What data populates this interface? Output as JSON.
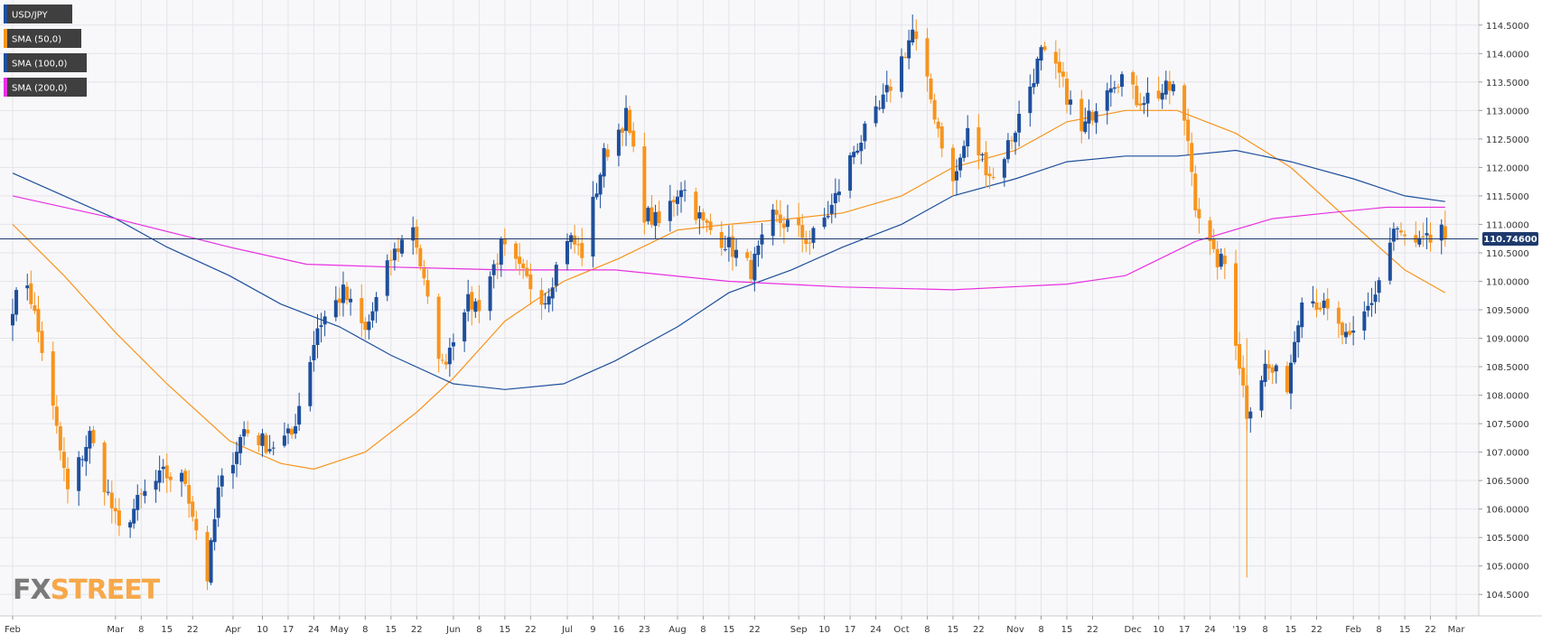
{
  "chart_data": {
    "type": "candlestick",
    "symbol": "USD/JPY",
    "last_price_label": "110.74600",
    "last_price": 110.746,
    "ylim": [
      104.25,
      114.75
    ],
    "yticks": [
      "104.5000",
      "105.0000",
      "105.5000",
      "106.0000",
      "106.5000",
      "107.0000",
      "107.5000",
      "108.0000",
      "108.5000",
      "109.0000",
      "109.5000",
      "110.0000",
      "110.5000",
      "111.0000",
      "111.5000",
      "112.0000",
      "112.5000",
      "113.0000",
      "113.5000",
      "114.0000",
      "114.5000"
    ],
    "xticks": [
      {
        "label": "Feb",
        "date": "2018-02-01"
      },
      {
        "label": "Mar",
        "date": "2018-03-01"
      },
      {
        "label": "8",
        "date": "2018-03-08"
      },
      {
        "label": "15",
        "date": "2018-03-15"
      },
      {
        "label": "22",
        "date": "2018-03-22"
      },
      {
        "label": "Apr",
        "date": "2018-04-02"
      },
      {
        "label": "10",
        "date": "2018-04-10"
      },
      {
        "label": "17",
        "date": "2018-04-17"
      },
      {
        "label": "24",
        "date": "2018-04-24"
      },
      {
        "label": "May",
        "date": "2018-05-01"
      },
      {
        "label": "8",
        "date": "2018-05-08"
      },
      {
        "label": "15",
        "date": "2018-05-15"
      },
      {
        "label": "22",
        "date": "2018-05-22"
      },
      {
        "label": "Jun",
        "date": "2018-06-01"
      },
      {
        "label": "8",
        "date": "2018-06-08"
      },
      {
        "label": "15",
        "date": "2018-06-15"
      },
      {
        "label": "22",
        "date": "2018-06-22"
      },
      {
        "label": "Jul",
        "date": "2018-07-02"
      },
      {
        "label": "9",
        "date": "2018-07-09"
      },
      {
        "label": "16",
        "date": "2018-07-16"
      },
      {
        "label": "23",
        "date": "2018-07-23"
      },
      {
        "label": "Aug",
        "date": "2018-08-01"
      },
      {
        "label": "8",
        "date": "2018-08-08"
      },
      {
        "label": "15",
        "date": "2018-08-15"
      },
      {
        "label": "22",
        "date": "2018-08-22"
      },
      {
        "label": "Sep",
        "date": "2018-09-03"
      },
      {
        "label": "10",
        "date": "2018-09-10"
      },
      {
        "label": "17",
        "date": "2018-09-17"
      },
      {
        "label": "24",
        "date": "2018-09-24"
      },
      {
        "label": "Oct",
        "date": "2018-10-01"
      },
      {
        "label": "8",
        "date": "2018-10-08"
      },
      {
        "label": "15",
        "date": "2018-10-15"
      },
      {
        "label": "22",
        "date": "2018-10-22"
      },
      {
        "label": "Nov",
        "date": "2018-11-01"
      },
      {
        "label": "8",
        "date": "2018-11-08"
      },
      {
        "label": "15",
        "date": "2018-11-15"
      },
      {
        "label": "22",
        "date": "2018-11-22"
      },
      {
        "label": "Dec",
        "date": "2018-12-03"
      },
      {
        "label": "10",
        "date": "2018-12-10"
      },
      {
        "label": "17",
        "date": "2018-12-17"
      },
      {
        "label": "24",
        "date": "2018-12-24"
      },
      {
        "label": "'19",
        "date": "2019-01-01"
      },
      {
        "label": "8",
        "date": "2019-01-08"
      },
      {
        "label": "15",
        "date": "2019-01-15"
      },
      {
        "label": "22",
        "date": "2019-01-22"
      },
      {
        "label": "Feb",
        "date": "2019-02-01"
      },
      {
        "label": "8",
        "date": "2019-02-08"
      },
      {
        "label": "15",
        "date": "2019-02-15"
      },
      {
        "label": "22",
        "date": "2019-02-22"
      },
      {
        "label": "Mar",
        "date": "2019-03-01"
      }
    ],
    "x_range": [
      "2018-02-01",
      "2019-03-01"
    ],
    "candle_closes": {
      "start_date": "2018-02-01",
      "end_date": "2019-02-26",
      "anchors": [
        {
          "date": "2018-02-01",
          "price": 109.6
        },
        {
          "date": "2018-02-05",
          "price": 110.0
        },
        {
          "date": "2018-02-09",
          "price": 108.8
        },
        {
          "date": "2018-02-16",
          "price": 106.3
        },
        {
          "date": "2018-02-22",
          "price": 107.3
        },
        {
          "date": "2018-03-02",
          "price": 105.6
        },
        {
          "date": "2018-03-08",
          "price": 106.2
        },
        {
          "date": "2018-03-14",
          "price": 106.6
        },
        {
          "date": "2018-03-20",
          "price": 106.5
        },
        {
          "date": "2018-03-26",
          "price": 104.8
        },
        {
          "date": "2018-03-29",
          "price": 106.3
        },
        {
          "date": "2018-04-05",
          "price": 107.4
        },
        {
          "date": "2018-04-12",
          "price": 107.1
        },
        {
          "date": "2018-04-18",
          "price": 107.3
        },
        {
          "date": "2018-04-25",
          "price": 109.2
        },
        {
          "date": "2018-05-02",
          "price": 109.8
        },
        {
          "date": "2018-05-08",
          "price": 109.1
        },
        {
          "date": "2018-05-15",
          "price": 110.4
        },
        {
          "date": "2018-05-21",
          "price": 111.0
        },
        {
          "date": "2018-05-25",
          "price": 109.6
        },
        {
          "date": "2018-05-29",
          "price": 108.5
        },
        {
          "date": "2018-06-04",
          "price": 109.6
        },
        {
          "date": "2018-06-08",
          "price": 109.6
        },
        {
          "date": "2018-06-14",
          "price": 110.6
        },
        {
          "date": "2018-06-21",
          "price": 110.0
        },
        {
          "date": "2018-06-26",
          "price": 109.7
        },
        {
          "date": "2018-07-02",
          "price": 110.8
        },
        {
          "date": "2018-07-06",
          "price": 110.5
        },
        {
          "date": "2018-07-12",
          "price": 112.2
        },
        {
          "date": "2018-07-18",
          "price": 112.9
        },
        {
          "date": "2018-07-23",
          "price": 111.2
        },
        {
          "date": "2018-07-27",
          "price": 111.0
        },
        {
          "date": "2018-08-02",
          "price": 111.7
        },
        {
          "date": "2018-08-08",
          "price": 111.0
        },
        {
          "date": "2018-08-14",
          "price": 110.7
        },
        {
          "date": "2018-08-21",
          "price": 110.2
        },
        {
          "date": "2018-08-27",
          "price": 111.1
        },
        {
          "date": "2018-08-31",
          "price": 111.0
        },
        {
          "date": "2018-09-06",
          "price": 110.7
        },
        {
          "date": "2018-09-12",
          "price": 111.3
        },
        {
          "date": "2018-09-18",
          "price": 112.3
        },
        {
          "date": "2018-09-25",
          "price": 113.0
        },
        {
          "date": "2018-10-01",
          "price": 113.9
        },
        {
          "date": "2018-10-04",
          "price": 114.4
        },
        {
          "date": "2018-10-09",
          "price": 113.2
        },
        {
          "date": "2018-10-15",
          "price": 111.7
        },
        {
          "date": "2018-10-19",
          "price": 112.6
        },
        {
          "date": "2018-10-26",
          "price": 111.8
        },
        {
          "date": "2018-11-01",
          "price": 112.7
        },
        {
          "date": "2018-11-08",
          "price": 114.0
        },
        {
          "date": "2018-11-13",
          "price": 113.6
        },
        {
          "date": "2018-11-19",
          "price": 112.6
        },
        {
          "date": "2018-11-26",
          "price": 113.5
        },
        {
          "date": "2018-11-30",
          "price": 113.6
        },
        {
          "date": "2018-12-04",
          "price": 113.2
        },
        {
          "date": "2018-12-10",
          "price": 113.3
        },
        {
          "date": "2018-12-14",
          "price": 113.4
        },
        {
          "date": "2018-12-18",
          "price": 112.5
        },
        {
          "date": "2018-12-20",
          "price": 111.4
        },
        {
          "date": "2018-12-25",
          "price": 110.4
        },
        {
          "date": "2018-12-28",
          "price": 110.3
        },
        {
          "date": "2019-01-03",
          "price": 107.7
        },
        {
          "date": "2019-01-08",
          "price": 108.5
        },
        {
          "date": "2019-01-14",
          "price": 108.2
        },
        {
          "date": "2019-01-18",
          "price": 109.8
        },
        {
          "date": "2019-01-23",
          "price": 109.6
        },
        {
          "date": "2019-01-31",
          "price": 108.9
        },
        {
          "date": "2019-02-07",
          "price": 109.8
        },
        {
          "date": "2019-02-12",
          "price": 110.9
        },
        {
          "date": "2019-02-18",
          "price": 110.6
        },
        {
          "date": "2019-02-22",
          "price": 110.7
        },
        {
          "date": "2019-02-25",
          "price": 111.0
        },
        {
          "date": "2019-02-26",
          "price": 110.746
        }
      ]
    },
    "spikes": [
      {
        "date": "2019-01-03",
        "low": 104.8,
        "high": 109.0
      }
    ],
    "series": [
      {
        "name": "SMA (50,0)",
        "color": "#f7941d",
        "points": [
          {
            "date": "2018-02-01",
            "price": 111.0
          },
          {
            "date": "2018-02-15",
            "price": 110.1
          },
          {
            "date": "2018-03-01",
            "price": 109.1
          },
          {
            "date": "2018-03-15",
            "price": 108.2
          },
          {
            "date": "2018-04-01",
            "price": 107.2
          },
          {
            "date": "2018-04-15",
            "price": 106.8
          },
          {
            "date": "2018-04-24",
            "price": 106.7
          },
          {
            "date": "2018-05-08",
            "price": 107.0
          },
          {
            "date": "2018-05-22",
            "price": 107.7
          },
          {
            "date": "2018-06-01",
            "price": 108.3
          },
          {
            "date": "2018-06-15",
            "price": 109.3
          },
          {
            "date": "2018-07-01",
            "price": 110.0
          },
          {
            "date": "2018-07-16",
            "price": 110.4
          },
          {
            "date": "2018-08-01",
            "price": 110.9
          },
          {
            "date": "2018-08-15",
            "price": 111.0
          },
          {
            "date": "2018-09-01",
            "price": 111.1
          },
          {
            "date": "2018-09-15",
            "price": 111.2
          },
          {
            "date": "2018-10-01",
            "price": 111.5
          },
          {
            "date": "2018-10-15",
            "price": 112.0
          },
          {
            "date": "2018-11-01",
            "price": 112.3
          },
          {
            "date": "2018-11-15",
            "price": 112.8
          },
          {
            "date": "2018-12-01",
            "price": 113.0
          },
          {
            "date": "2018-12-15",
            "price": 113.0
          },
          {
            "date": "2018-12-31",
            "price": 112.6
          },
          {
            "date": "2019-01-15",
            "price": 112.0
          },
          {
            "date": "2019-02-01",
            "price": 111.0
          },
          {
            "date": "2019-02-15",
            "price": 110.2
          },
          {
            "date": "2019-02-26",
            "price": 109.8
          }
        ]
      },
      {
        "name": "SMA (100,0)",
        "color": "#1e4f9c",
        "points": [
          {
            "date": "2018-02-01",
            "price": 111.9
          },
          {
            "date": "2018-02-15",
            "price": 111.5
          },
          {
            "date": "2018-03-01",
            "price": 111.1
          },
          {
            "date": "2018-03-15",
            "price": 110.6
          },
          {
            "date": "2018-04-01",
            "price": 110.1
          },
          {
            "date": "2018-04-15",
            "price": 109.6
          },
          {
            "date": "2018-05-01",
            "price": 109.2
          },
          {
            "date": "2018-05-15",
            "price": 108.7
          },
          {
            "date": "2018-06-01",
            "price": 108.2
          },
          {
            "date": "2018-06-15",
            "price": 108.1
          },
          {
            "date": "2018-07-01",
            "price": 108.2
          },
          {
            "date": "2018-07-15",
            "price": 108.6
          },
          {
            "date": "2018-08-01",
            "price": 109.2
          },
          {
            "date": "2018-08-15",
            "price": 109.8
          },
          {
            "date": "2018-09-01",
            "price": 110.2
          },
          {
            "date": "2018-09-15",
            "price": 110.6
          },
          {
            "date": "2018-10-01",
            "price": 111.0
          },
          {
            "date": "2018-10-15",
            "price": 111.5
          },
          {
            "date": "2018-11-01",
            "price": 111.8
          },
          {
            "date": "2018-11-15",
            "price": 112.1
          },
          {
            "date": "2018-12-01",
            "price": 112.2
          },
          {
            "date": "2018-12-15",
            "price": 112.2
          },
          {
            "date": "2018-12-31",
            "price": 112.3
          },
          {
            "date": "2019-01-15",
            "price": 112.1
          },
          {
            "date": "2019-02-01",
            "price": 111.8
          },
          {
            "date": "2019-02-15",
            "price": 111.5
          },
          {
            "date": "2019-02-26",
            "price": 111.4
          }
        ]
      },
      {
        "name": "SMA (200,0)",
        "color": "#e830e0",
        "points": [
          {
            "date": "2018-02-01",
            "price": 111.5
          },
          {
            "date": "2018-03-01",
            "price": 111.1
          },
          {
            "date": "2018-04-01",
            "price": 110.6
          },
          {
            "date": "2018-04-22",
            "price": 110.3
          },
          {
            "date": "2018-05-15",
            "price": 110.25
          },
          {
            "date": "2018-06-15",
            "price": 110.2
          },
          {
            "date": "2018-07-15",
            "price": 110.2
          },
          {
            "date": "2018-08-15",
            "price": 110.0
          },
          {
            "date": "2018-09-15",
            "price": 109.9
          },
          {
            "date": "2018-10-15",
            "price": 109.85
          },
          {
            "date": "2018-11-15",
            "price": 109.95
          },
          {
            "date": "2018-12-01",
            "price": 110.1
          },
          {
            "date": "2018-12-20",
            "price": 110.7
          },
          {
            "date": "2019-01-10",
            "price": 111.1
          },
          {
            "date": "2019-01-25",
            "price": 111.2
          },
          {
            "date": "2019-02-10",
            "price": 111.3
          },
          {
            "date": "2019-02-26",
            "price": 111.3
          }
        ]
      }
    ],
    "candle_colors": {
      "up": "#1e4f9c",
      "down": "#f7941d"
    },
    "grid": true,
    "legend_placement": "top-left"
  },
  "legend": [
    {
      "label": "USD/JPY",
      "color": "#1e4f9c"
    },
    {
      "label": "SMA (50,0)",
      "color": "#f7941d"
    },
    {
      "label": "SMA (100,0)",
      "color": "#1e4f9c"
    },
    {
      "label": "SMA (200,0)",
      "color": "#e830e0"
    }
  ],
  "watermark": {
    "part1": "FX",
    "part2": "STREET"
  },
  "colors": {
    "background": "#f8f8fa",
    "grid": "#e4e4ea",
    "axis": "#333333",
    "price_line": "#1e3a6e",
    "price_tag": "#1e3a6e"
  }
}
